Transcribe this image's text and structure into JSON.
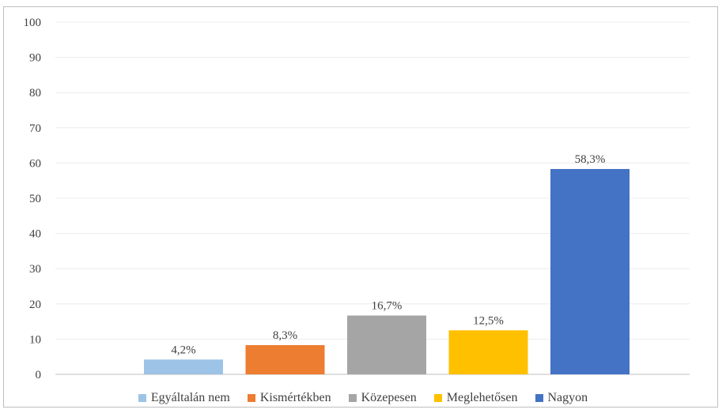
{
  "chart_data": {
    "type": "bar",
    "title": "",
    "xlabel": "",
    "ylabel": "",
    "ylim": [
      0,
      100
    ],
    "yticks": [
      0,
      10,
      20,
      30,
      40,
      50,
      60,
      70,
      80,
      90,
      100
    ],
    "grid": true,
    "legend_position": "bottom",
    "categories": [
      "Egyáltalán nem",
      "Kismértékben",
      "Közepesen",
      "Meglehetősen",
      "Nagyon"
    ],
    "values": [
      4.2,
      8.3,
      16.7,
      12.5,
      58.3
    ],
    "data_labels": [
      "4,2%",
      "8,3%",
      "16,7%",
      "12,5%",
      "58,3%"
    ],
    "colors": [
      "#9dc3e6",
      "#ed7d31",
      "#a5a5a5",
      "#ffc000",
      "#4472c4"
    ]
  }
}
